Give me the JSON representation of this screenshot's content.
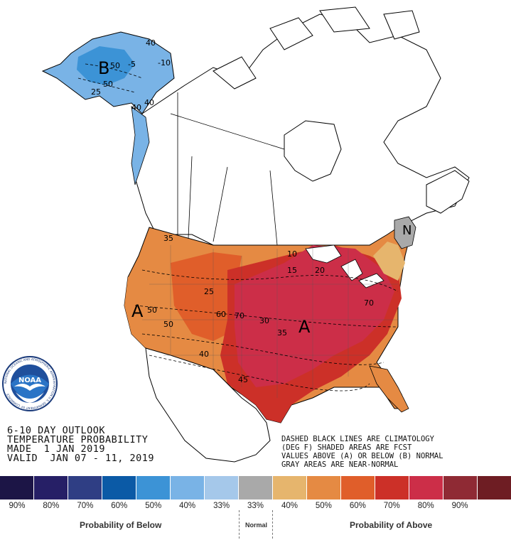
{
  "header": {
    "lines": [
      "6-10 DAY OUTLOOK",
      "TEMPERATURE PROBABILITY",
      "MADE  1 JAN 2019",
      "VALID  JAN 07 - 11, 2019"
    ]
  },
  "notes": {
    "lines": [
      "DASHED BLACK LINES ARE CLIMATOLOGY",
      "(DEG F) SHADED AREAS ARE FCST",
      "VALUES ABOVE (A) OR BELOW (B) NORMAL",
      "GRAY AREAS ARE NEAR-NORMAL"
    ]
  },
  "map_labels": {
    "alaska_category": "B",
    "alaska_values": [
      "40",
      "50",
      "-5",
      "-10",
      "40",
      "50",
      "40",
      "25"
    ],
    "west_category": "A",
    "central_category": "A",
    "northeast_category": "N",
    "west_values": [
      "35",
      "50",
      "50",
      "40",
      "25",
      "60",
      "70"
    ],
    "central_values": [
      "10",
      "15",
      "20",
      "30",
      "35",
      "45",
      "70"
    ]
  },
  "logo": {
    "text": "NOAA",
    "ring_text": "NATIONAL OCEANIC AND ATMOSPHERIC ADMINISTRATION  U.S. DEPARTMENT OF COMMERCE"
  },
  "legend": {
    "swatches": [
      "#1c1546",
      "#261f66",
      "#2f3e84",
      "#0b5aa6",
      "#3c93d6",
      "#79b3e6",
      "#a5c8ea",
      "#a9a9a9",
      "#e6b56d",
      "#e58a43",
      "#e05e2a",
      "#cc3028",
      "#cc2e48",
      "#8f2a34",
      "#6e1d23"
    ],
    "labels": [
      "90%",
      "80%",
      "70%",
      "60%",
      "50%",
      "40%",
      "33%",
      "33%",
      "40%",
      "50%",
      "60%",
      "70%",
      "80%",
      "90%",
      ""
    ],
    "below_caption": "Probability of Below",
    "normal_caption": "Normal",
    "above_caption": "Probability of Above"
  }
}
